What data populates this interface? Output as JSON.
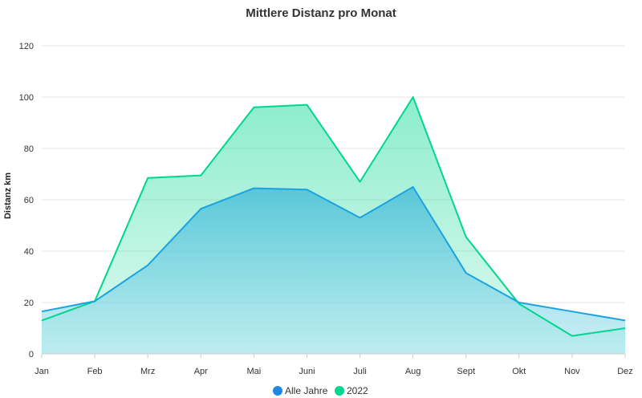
{
  "chart_data": {
    "type": "area",
    "title": "Mittlere Distanz pro Monat",
    "xlabel": "",
    "ylabel": "Distanz km",
    "categories": [
      "Jan",
      "Feb",
      "Mrz",
      "Apr",
      "Mai",
      "Juni",
      "Juli",
      "Aug",
      "Sept",
      "Okt",
      "Nov",
      "Dez"
    ],
    "ylim": [
      0,
      120
    ],
    "yticks": [
      0,
      20,
      40,
      60,
      80,
      100,
      120
    ],
    "grid": true,
    "legend_position": "bottom-center",
    "series": [
      {
        "name": "Alle Jahre",
        "color": "#1aa3e0",
        "legend_color": "#1e88e5",
        "values": [
          16.5,
          20.5,
          34.5,
          56.5,
          64.5,
          64,
          53,
          65,
          31.5,
          20,
          16.5,
          13
        ]
      },
      {
        "name": "2022",
        "color": "#00d68f",
        "legend_color": "#00d68f",
        "values": [
          13,
          20.5,
          68.5,
          69.5,
          96,
          97,
          67,
          100,
          45.5,
          19.5,
          7,
          10
        ]
      }
    ]
  }
}
